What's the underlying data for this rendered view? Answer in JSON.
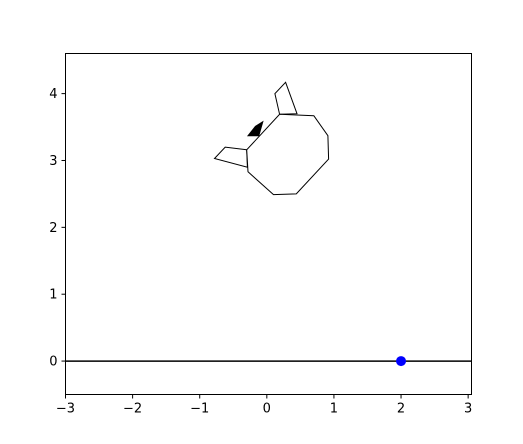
{
  "chart_data": {
    "type": "scatter",
    "title": "",
    "xlabel": "",
    "ylabel": "",
    "xlim": [
      -3,
      3.05
    ],
    "ylim": [
      -0.5,
      4.6
    ],
    "grid": false,
    "x_ticks": [
      -3,
      -2,
      -1,
      0,
      1,
      2,
      3
    ],
    "x_tick_labels": [
      "−3",
      "−2",
      "−1",
      "0",
      "1",
      "2",
      "3"
    ],
    "y_ticks": [
      0,
      1,
      2,
      3,
      4
    ],
    "y_tick_labels": [
      "0",
      "1",
      "2",
      "3",
      "4"
    ],
    "ground_line": {
      "y": 0,
      "color": "#000000"
    },
    "point": {
      "x": 2.0,
      "y": 0.0,
      "color": "#0000ff"
    },
    "octagon": [
      [
        0.7,
        3.67
      ],
      [
        0.91,
        3.37
      ],
      [
        0.92,
        3.02
      ],
      [
        0.44,
        2.5
      ],
      [
        0.1,
        2.49
      ],
      [
        -0.28,
        2.83
      ],
      [
        -0.3,
        3.16
      ],
      [
        0.19,
        3.69
      ]
    ],
    "left_flap": [
      [
        -0.3,
        3.16
      ],
      [
        -0.62,
        3.2
      ],
      [
        -0.78,
        3.03
      ],
      [
        -0.29,
        2.9
      ]
    ],
    "top_flap": [
      [
        0.19,
        3.69
      ],
      [
        0.12,
        4.0
      ],
      [
        0.28,
        4.17
      ],
      [
        0.45,
        3.7
      ]
    ],
    "dark_wedge": [
      [
        -0.28,
        3.37
      ],
      [
        -0.12,
        3.37
      ],
      [
        -0.06,
        3.58
      ],
      [
        -0.17,
        3.51
      ]
    ],
    "outline_color": "#000000",
    "wedge_color": "#000000"
  }
}
